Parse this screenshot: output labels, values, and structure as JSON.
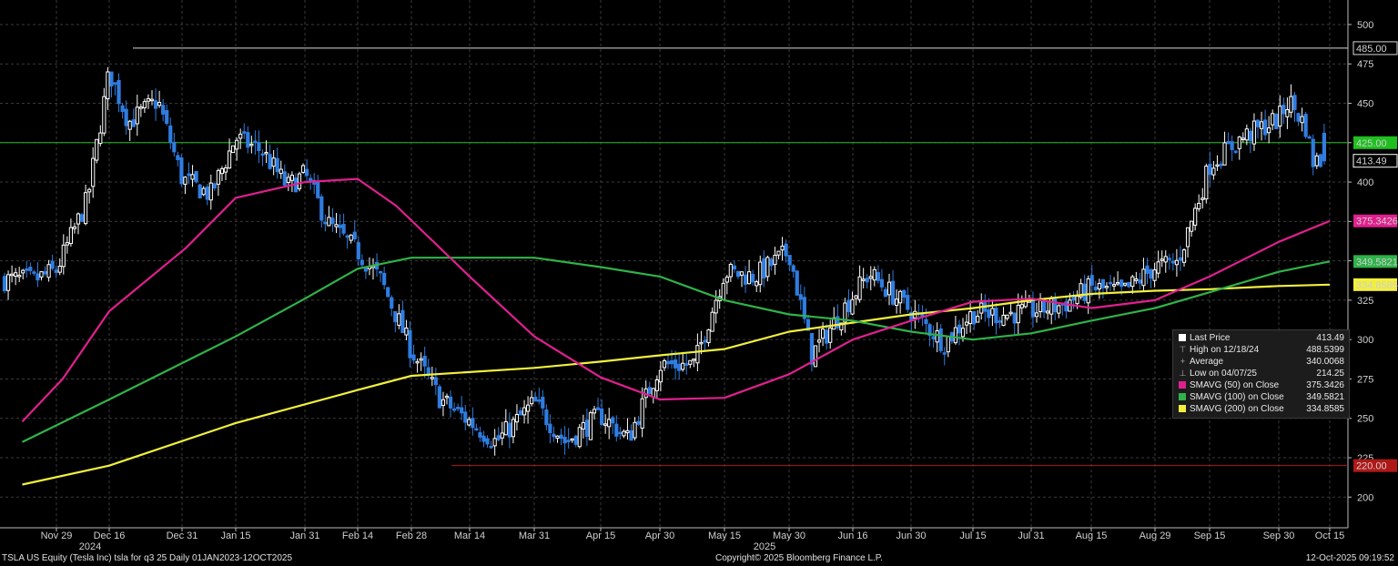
{
  "chart_data": {
    "type": "candlestick",
    "x_ticks": [
      "Nov 29",
      "Dec 16",
      "Dec 31",
      "Jan 15",
      "Jan 31",
      "Feb 14",
      "Feb 28",
      "Mar 14",
      "Mar 31",
      "Apr 15",
      "Apr 30",
      "May 15",
      "May 30",
      "Jun 16",
      "Jun 30",
      "Jul 15",
      "Jul 31",
      "Aug 15",
      "Aug 29",
      "Sep 15",
      "Sep 30",
      "Oct 15"
    ],
    "year_labels": [
      "2024",
      "2025"
    ],
    "y_ticks": [
      200,
      225,
      250,
      275,
      300,
      325,
      350,
      375,
      400,
      425,
      450,
      475,
      500
    ],
    "ylim": [
      180,
      510
    ],
    "grid": true,
    "horizontal_levels": [
      {
        "value": 485.0,
        "label": "485.00",
        "color": "#d8d8d8"
      },
      {
        "value": 425.0,
        "label": "425.00",
        "color": "#1fbf1f"
      },
      {
        "value": 220.0,
        "label": "220.00",
        "color": "#b01818"
      }
    ],
    "last_price_tag": {
      "value": 413.49,
      "label": "413.49",
      "color": "#ffffff"
    },
    "sma_tags": [
      {
        "value": 375.3426,
        "label": "375.3426",
        "color": "#e0208f"
      },
      {
        "value": 349.5821,
        "label": "349.5821",
        "color": "#2fb34a"
      },
      {
        "value": 334.8585,
        "label": "334.8585",
        "color": "#f2f03c"
      }
    ],
    "price_path": [
      [
        "Nov 22",
        338
      ],
      [
        "Nov 29",
        344
      ],
      [
        "Dec 9",
        389
      ],
      [
        "Dec 16",
        470
      ],
      [
        "Dec 20",
        438
      ],
      [
        "Dec 26",
        452
      ],
      [
        "Dec 31",
        402
      ],
      [
        "Jan 8",
        392
      ],
      [
        "Jan 15",
        428
      ],
      [
        "Jan 21",
        420
      ],
      [
        "Jan 27",
        397
      ],
      [
        "Jan 31",
        405
      ],
      [
        "Feb 6",
        374
      ],
      [
        "Feb 14",
        356
      ],
      [
        "Feb 20",
        338
      ],
      [
        "Feb 28",
        293
      ],
      [
        "Mar 7",
        262
      ],
      [
        "Mar 14",
        248
      ],
      [
        "Mar 21",
        235
      ],
      [
        "Mar 31",
        260
      ],
      [
        "Apr 7",
        235
      ],
      [
        "Apr 15",
        252
      ],
      [
        "Apr 22",
        237
      ],
      [
        "Apr 30",
        284
      ],
      [
        "May 8",
        284
      ],
      [
        "May 15",
        343
      ],
      [
        "May 22",
        340
      ],
      [
        "May 30",
        356
      ],
      [
        "Jun 5",
        290
      ],
      [
        "Jun 16",
        328
      ],
      [
        "Jun 20",
        342
      ],
      [
        "Jun 30",
        318
      ],
      [
        "Jul 8",
        298
      ],
      [
        "Jul 15",
        317
      ],
      [
        "Jul 24",
        316
      ],
      [
        "Jul 31",
        318
      ],
      [
        "Aug 8",
        322
      ],
      [
        "Aug 15",
        333
      ],
      [
        "Aug 22",
        330
      ],
      [
        "Aug 29",
        346
      ],
      [
        "Sep 5",
        349
      ],
      [
        "Sep 11",
        385
      ],
      [
        "Sep 15",
        411
      ],
      [
        "Sep 22",
        428
      ],
      [
        "Sep 30",
        440
      ],
      [
        "Oct 3",
        452
      ],
      [
        "Oct 8",
        435
      ],
      [
        "Oct 10",
        413.49
      ]
    ],
    "sma_50_path": [
      [
        "Nov 18",
        248
      ],
      [
        "Dec 1",
        275
      ],
      [
        "Dec 16",
        318
      ],
      [
        "Jan 1",
        358
      ],
      [
        "Jan 15",
        390
      ],
      [
        "Jan 31",
        400
      ],
      [
        "Feb 14",
        402
      ],
      [
        "Feb 24",
        385
      ],
      [
        "Mar 14",
        340
      ],
      [
        "Mar 31",
        302
      ],
      [
        "Apr 15",
        276
      ],
      [
        "Apr 30",
        262
      ],
      [
        "May 15",
        263
      ],
      [
        "May 30",
        278
      ],
      [
        "Jun 16",
        300
      ],
      [
        "Jun 30",
        312
      ],
      [
        "Jul 15",
        324
      ],
      [
        "Jul 31",
        326
      ],
      [
        "Aug 15",
        320
      ],
      [
        "Aug 29",
        325
      ],
      [
        "Sep 15",
        340
      ],
      [
        "Sep 30",
        362
      ],
      [
        "Oct 15",
        375.34
      ]
    ],
    "sma_100_path": [
      [
        "Nov 18",
        235
      ],
      [
        "Dec 16",
        262
      ],
      [
        "Jan 15",
        302
      ],
      [
        "Jan 31",
        326
      ],
      [
        "Feb 14",
        345
      ],
      [
        "Feb 28",
        352
      ],
      [
        "Mar 31",
        352
      ],
      [
        "Apr 15",
        346
      ],
      [
        "Apr 30",
        340
      ],
      [
        "May 15",
        325
      ],
      [
        "May 30",
        316
      ],
      [
        "Jun 16",
        312
      ],
      [
        "Jun 30",
        305
      ],
      [
        "Jul 15",
        300
      ],
      [
        "Jul 31",
        304
      ],
      [
        "Aug 15",
        312
      ],
      [
        "Aug 29",
        320
      ],
      [
        "Sep 15",
        330
      ],
      [
        "Sep 30",
        343
      ],
      [
        "Oct 15",
        349.58
      ]
    ],
    "sma_200_path": [
      [
        "Nov 18",
        208
      ],
      [
        "Dec 16",
        220
      ],
      [
        "Jan 15",
        247
      ],
      [
        "Feb 14",
        268
      ],
      [
        "Feb 28",
        277
      ],
      [
        "Mar 31",
        282
      ],
      [
        "Apr 15",
        286
      ],
      [
        "Apr 30",
        290
      ],
      [
        "May 15",
        294
      ],
      [
        "May 30",
        305
      ],
      [
        "Jun 30",
        316
      ],
      [
        "Jul 15",
        320
      ],
      [
        "Jul 31",
        325
      ],
      [
        "Aug 15",
        329
      ],
      [
        "Aug 29",
        331
      ],
      [
        "Sep 15",
        332
      ],
      [
        "Sep 30",
        334
      ],
      [
        "Oct 15",
        334.86
      ]
    ],
    "stats": {
      "last_price": {
        "label": "Last Price",
        "value": "413.49"
      },
      "high": {
        "label": "High on 12/18/24",
        "value": "488.5399"
      },
      "average": {
        "label": "Average",
        "value": "340.0068"
      },
      "low": {
        "label": "Low on 04/07/25",
        "value": "214.25"
      },
      "sma50": {
        "label": "SMAVG (50)  on Close",
        "value": "375.3426"
      },
      "sma100": {
        "label": "SMAVG (100) on Close",
        "value": "349.5821"
      },
      "sma200": {
        "label": "SMAVG (200) on Close",
        "value": "334.8585"
      }
    },
    "colors": {
      "background": "#000000",
      "grid": "#3a3a3a",
      "up": "#ffffff",
      "down": "#2f7de0",
      "sma50": "#e0208f",
      "sma100": "#2fb34a",
      "sma200": "#f2f03c"
    }
  },
  "footer": {
    "left": "TSLA US Equity (Tesla Inc) tsla for q3 25 Daily 01JAN2023-12OCT2025",
    "center": "Copyright© 2025 Bloomberg Finance L.P.",
    "right": "12-Oct-2025 09:19:52"
  }
}
